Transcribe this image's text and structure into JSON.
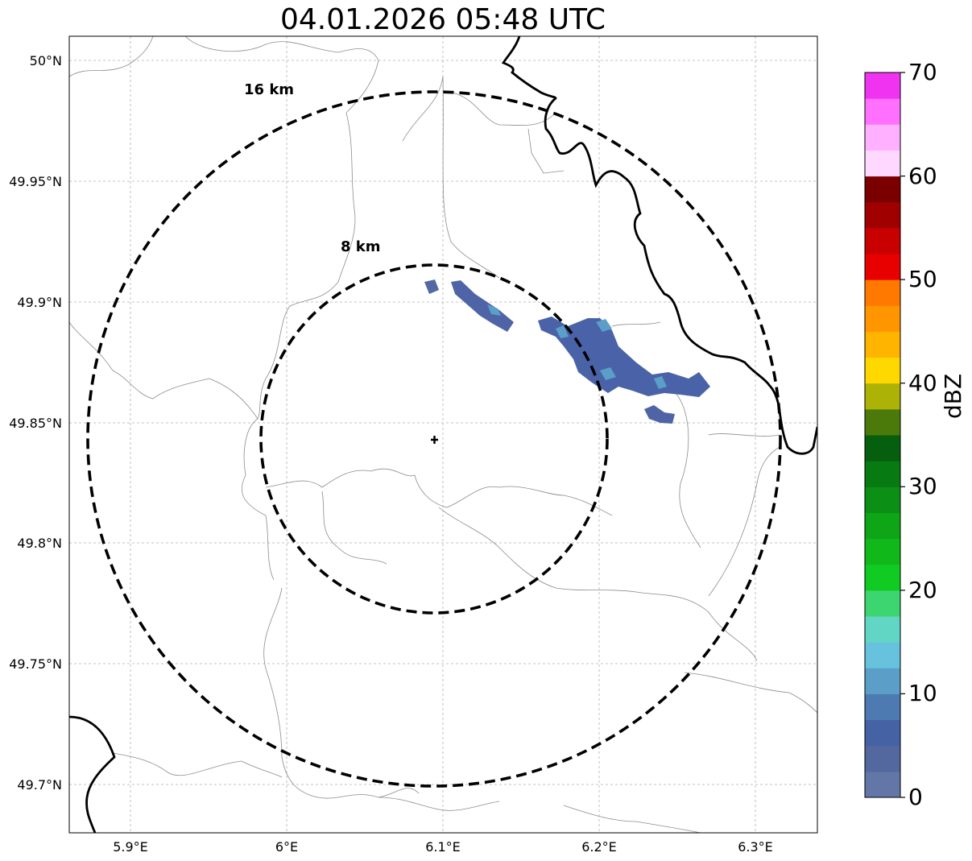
{
  "title": "04.01.2026 05:48 UTC",
  "map": {
    "center": {
      "lon": 6.095,
      "lat": 49.843
    },
    "rings": [
      {
        "label": "8 km"
      },
      {
        "label": "16 km"
      }
    ],
    "lat_ticks": [
      "50°N",
      "49.95°N",
      "49.9°N",
      "49.85°N",
      "49.8°N",
      "49.75°N",
      "49.7°N"
    ],
    "lon_ticks": [
      "5.9°E",
      "6°E",
      "6.1°E",
      "6.2°E",
      "6.3°E"
    ],
    "border_color": "#000000",
    "boundary_color": "#8c8c8c",
    "grid_color": "#b0b0b0"
  },
  "colorbar": {
    "label": "dBZ",
    "ticks": [
      "0",
      "10",
      "20",
      "30",
      "40",
      "50",
      "60",
      "70"
    ],
    "colors": [
      "#6276a8",
      "#52689f",
      "#4462a4",
      "#4d7ab0",
      "#5b9fc8",
      "#66c2dd",
      "#62d6c4",
      "#3dd56f",
      "#10cc22",
      "#10b81a",
      "#0ea517",
      "#0b9015",
      "#087a12",
      "#065f0e",
      "#4b7a0b",
      "#adb206",
      "#ffd800",
      "#ffb400",
      "#ff9600",
      "#ff7800",
      "#e80000",
      "#c80000",
      "#a00000",
      "#7a0000",
      "#ffd8ff",
      "#ffb0ff",
      "#ff70ff",
      "#f033f0"
    ]
  }
}
